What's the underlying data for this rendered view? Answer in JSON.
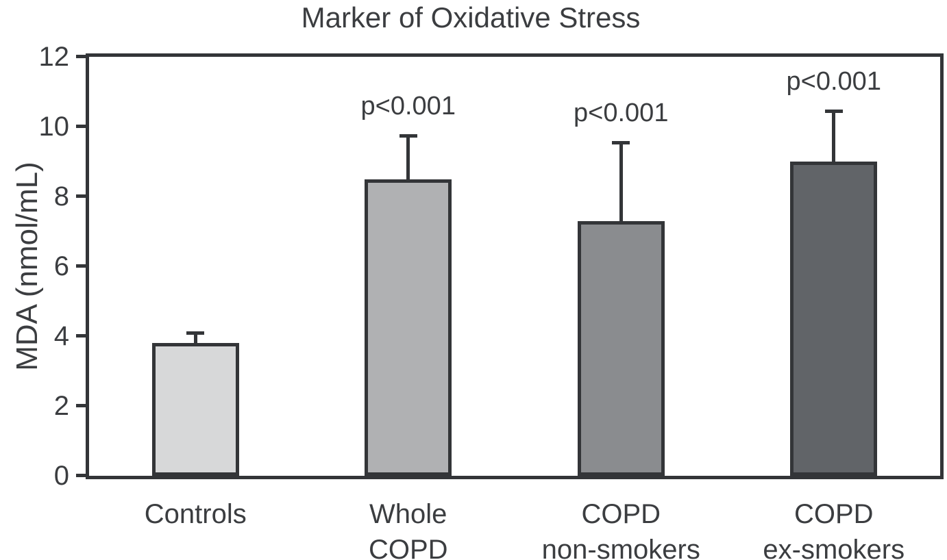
{
  "chart_data": {
    "type": "bar",
    "title": "Marker of Oxidative Stress",
    "xlabel": "",
    "ylabel": "MDA (nmol/mL)",
    "ylim": [
      0,
      12
    ],
    "yticks": [
      0,
      2,
      4,
      6,
      8,
      10,
      12
    ],
    "grid": false,
    "legend": "none",
    "categories": [
      [
        "Controls"
      ],
      [
        "Whole",
        "COPD"
      ],
      [
        "COPD",
        "non-smokers"
      ],
      [
        "COPD",
        "ex-smokers"
      ]
    ],
    "values": [
      3.8,
      8.5,
      7.3,
      9.0
    ],
    "error_plus": [
      0.3,
      1.25,
      2.25,
      1.45
    ],
    "annotations": [
      "",
      "p<0.001",
      "p<0.001",
      "p<0.001"
    ],
    "bar_colors": [
      "#d7d8d9",
      "#b0b1b3",
      "#8a8c8f",
      "#616468"
    ],
    "edge_color": "#333538",
    "text_color": "#3b3d40"
  }
}
